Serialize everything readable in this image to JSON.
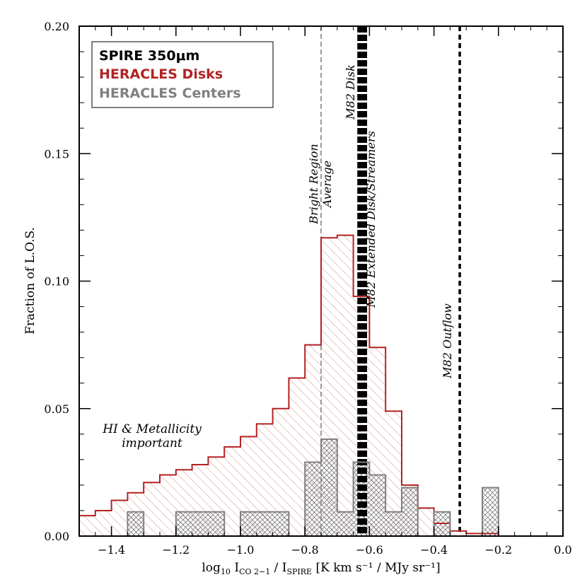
{
  "chart_data": {
    "type": "bar",
    "subtype": "step-histogram",
    "xlabel_parts": {
      "prefix_main": "log",
      "prefix_sub": "10",
      "i1_main": "I",
      "i1_sub": "CO 2−1",
      "sep": " / ",
      "i2_main": "I",
      "i2_sub": "SPIRE",
      "units": " [K km s⁻¹ / MJy sr⁻¹]"
    },
    "ylabel": "Fraction of L.O.S.",
    "xlim": [
      -1.5,
      0.0
    ],
    "ylim": [
      0.0,
      0.2
    ],
    "xticks": [
      -1.4,
      -1.2,
      -1.0,
      -0.8,
      -0.6,
      -0.4,
      -0.2,
      0.0
    ],
    "xtick_labels": [
      "−1.4",
      "−1.2",
      "−1.0",
      "−0.8",
      "−0.6",
      "−0.4",
      "−0.2",
      "0.0"
    ],
    "yticks": [
      0.0,
      0.05,
      0.1,
      0.15,
      0.2
    ],
    "ytick_labels": [
      "0.00",
      "0.05",
      "0.10",
      "0.15",
      "0.20"
    ],
    "legend_position": "top-left",
    "legend": [
      {
        "label": "SPIRE 350μm",
        "color": "#000000"
      },
      {
        "label": "HERACLES Disks",
        "color": "#b22222"
      },
      {
        "label": "HERACLES Centers",
        "color": "#808080"
      }
    ],
    "bin_edges": [
      -1.5,
      -1.45,
      -1.4,
      -1.35,
      -1.3,
      -1.25,
      -1.2,
      -1.15,
      -1.1,
      -1.05,
      -1.0,
      -0.95,
      -0.9,
      -0.85,
      -0.8,
      -0.75,
      -0.7,
      -0.65,
      -0.6,
      -0.55,
      -0.5,
      -0.45,
      -0.4,
      -0.35,
      -0.3,
      -0.25,
      -0.2,
      -0.15,
      -0.1,
      -0.05,
      0.0
    ],
    "series": [
      {
        "name": "HERACLES Disks",
        "color": "#b22222",
        "hatch": "diagonal",
        "values": [
          0.008,
          0.01,
          0.014,
          0.017,
          0.021,
          0.024,
          0.026,
          0.028,
          0.031,
          0.035,
          0.039,
          0.044,
          0.05,
          0.062,
          0.075,
          0.117,
          0.118,
          0.094,
          0.074,
          0.049,
          0.02,
          0.011,
          0.005,
          0.002,
          0.001,
          0.001,
          0,
          0,
          0,
          0
        ]
      },
      {
        "name": "HERACLES Centers",
        "color": "#808080",
        "hatch": "crosshatch",
        "values": [
          0,
          0,
          0,
          0.0095,
          0,
          0,
          0.0095,
          0.0095,
          0.0095,
          0,
          0.0095,
          0.0095,
          0.0095,
          0,
          0.029,
          0.038,
          0.0095,
          0.029,
          0.024,
          0.0095,
          0.019,
          0,
          0.0095,
          0,
          0,
          0.019,
          0,
          0,
          0,
          0
        ]
      }
    ],
    "vlines": [
      {
        "x": -0.75,
        "style": "thin-dashed",
        "color": "#808080",
        "label": "Bright Region Average",
        "label_lines": [
          "Bright Region",
          "Average"
        ]
      },
      {
        "x": -0.63,
        "style": "thick-dashed",
        "color": "#000000",
        "label": "M82 Disk",
        "label_lines": [
          "M82 Disk"
        ]
      },
      {
        "x": -0.615,
        "style": "thick-dashed",
        "color": "#000000",
        "label": "M82 Extended Disk/Streamers",
        "label_lines": [
          "M82 Extended Disk/Streamers"
        ]
      },
      {
        "x": -0.32,
        "style": "medium-dashed",
        "color": "#000000",
        "label": "M82 Outflow",
        "label_lines": [
          "M82 Outflow"
        ]
      }
    ],
    "annotations": [
      {
        "text_lines": [
          "HI & Metallicity",
          "important"
        ],
        "x": -1.3,
        "y": 0.037
      }
    ]
  }
}
